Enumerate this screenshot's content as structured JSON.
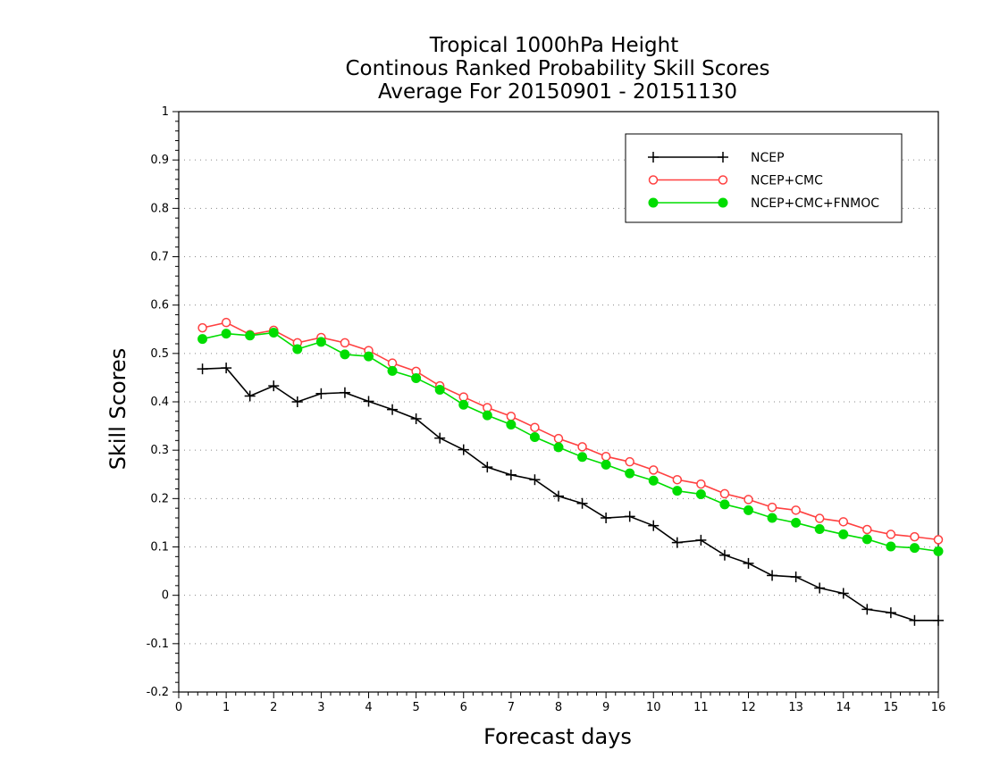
{
  "chart_data": {
    "type": "line",
    "title_lines": [
      "Tropical 1000hPa Height",
      "Continous Ranked Probability Skill Scores",
      "Average For 20150901 - 20151130"
    ],
    "xlabel": "Forecast days",
    "ylabel": "Skill Scores",
    "xlim": [
      0,
      16
    ],
    "ylim": [
      -0.2,
      1
    ],
    "x_ticks": [
      "0",
      "1",
      "2",
      "3",
      "4",
      "5",
      "6",
      "7",
      "8",
      "9",
      "10",
      "11",
      "12",
      "13",
      "14",
      "15",
      "16"
    ],
    "y_ticks": [
      "-0.2",
      "-0.1",
      "0",
      "0.1",
      "0.2",
      "0.3",
      "0.4",
      "0.5",
      "0.6",
      "0.7",
      "0.8",
      "0.9",
      "1"
    ],
    "grid": "horizontal dotted",
    "legend_position": "top-right",
    "x": [
      0.5,
      1,
      1.5,
      2,
      2.5,
      3,
      3.5,
      4,
      4.5,
      5,
      5.5,
      6,
      6.5,
      7,
      7.5,
      8,
      8.5,
      9,
      9.5,
      10,
      10.5,
      11,
      11.5,
      12,
      12.5,
      13,
      13.5,
      14,
      14.5,
      15,
      15.5,
      16
    ],
    "series": [
      {
        "name": "NCEP",
        "color": "#000000",
        "marker": "plus",
        "values": [
          0.468,
          0.47,
          0.412,
          0.433,
          0.4,
          0.417,
          0.419,
          0.401,
          0.384,
          0.365,
          0.325,
          0.301,
          0.265,
          0.249,
          0.239,
          0.205,
          0.19,
          0.16,
          0.163,
          0.144,
          0.109,
          0.114,
          0.083,
          0.066,
          0.041,
          0.038,
          0.015,
          0.004,
          -0.029,
          -0.036,
          -0.052,
          -0.052
        ]
      },
      {
        "name": "NCEP+CMC",
        "color": "#ff4040",
        "marker": "open-circle",
        "values": [
          0.553,
          0.564,
          0.539,
          0.548,
          0.522,
          0.533,
          0.522,
          0.506,
          0.48,
          0.463,
          0.433,
          0.41,
          0.388,
          0.37,
          0.347,
          0.324,
          0.307,
          0.287,
          0.276,
          0.259,
          0.239,
          0.23,
          0.21,
          0.198,
          0.182,
          0.176,
          0.159,
          0.152,
          0.136,
          0.126,
          0.121,
          0.115
        ]
      },
      {
        "name": "NCEP+CMC+FNMOC",
        "color": "#00dd00",
        "marker": "filled-circle",
        "values": [
          0.53,
          0.541,
          0.537,
          0.543,
          0.509,
          0.524,
          0.498,
          0.494,
          0.464,
          0.449,
          0.425,
          0.394,
          0.372,
          0.353,
          0.327,
          0.306,
          0.286,
          0.27,
          0.252,
          0.237,
          0.216,
          0.209,
          0.188,
          0.176,
          0.16,
          0.15,
          0.137,
          0.126,
          0.116,
          0.101,
          0.098,
          0.091
        ]
      }
    ]
  }
}
